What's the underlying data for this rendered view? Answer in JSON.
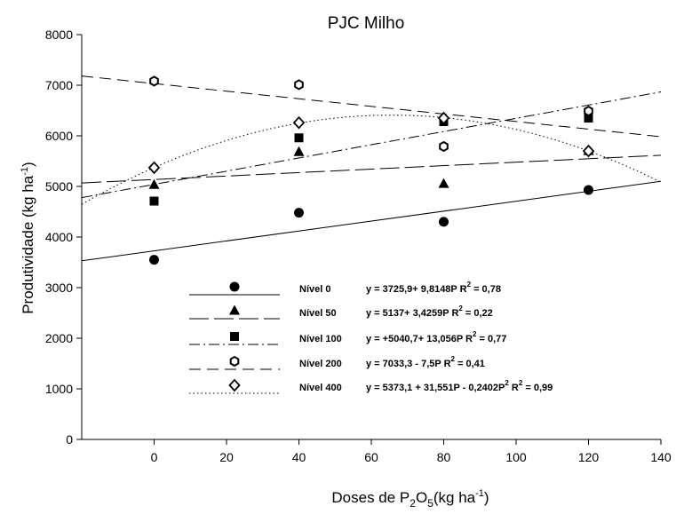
{
  "chart_data": {
    "type": "scatter",
    "title": "PJC Milho",
    "ylabel": "Produtividade (kg ha",
    "ylabel_sup": "-1",
    "ylabel_end": ")",
    "xlabel_pre": "Doses de P",
    "xlabel_sub1": "2",
    "xlabel_mid": "O",
    "xlabel_sub2": "5",
    "xlabel_post": "(kg ha",
    "xlabel_sup": "-1",
    "xlabel_end": ")",
    "xlim": [
      -20,
      140
    ],
    "ylim": [
      0,
      8000
    ],
    "xticks": [
      0,
      20,
      40,
      60,
      80,
      100,
      120,
      140
    ],
    "yticks": [
      0,
      1000,
      2000,
      3000,
      4000,
      5000,
      6000,
      7000,
      8000
    ],
    "grid": false,
    "legend_position": "bottom-center",
    "series": [
      {
        "name": "Nível 0",
        "marker": "filled-circle",
        "line_style": "solid",
        "equation": "y =  3725,9+ 9,8148P",
        "r2_label": "R",
        "r2_sup": "2",
        "r2_value": " = 0,78",
        "fit": {
          "kind": "linear",
          "a": 3725.9,
          "b": 9.8148
        },
        "x": [
          0,
          40,
          80,
          120
        ],
        "y": [
          3550,
          4480,
          4300,
          4930
        ]
      },
      {
        "name": "Nível 50",
        "marker": "filled-triangle",
        "line_style": "long-dash",
        "equation": "y =  5137+ 3,4259P",
        "r2_label": "R",
        "r2_sup": "2",
        "r2_value": " = 0,22",
        "fit": {
          "kind": "linear",
          "a": 5137,
          "b": 3.4259
        },
        "x": [
          0,
          40,
          80,
          120
        ],
        "y": [
          5030,
          5680,
          5050,
          5700
        ]
      },
      {
        "name": "Nível 100",
        "marker": "filled-square",
        "line_style": "dash-dot",
        "equation": "y =  +5040,7+ 13,056P",
        "r2_label": "R",
        "r2_sup": "2",
        "r2_value": " = 0,77",
        "fit": {
          "kind": "linear",
          "a": 5040.7,
          "b": 13.056
        },
        "x": [
          0,
          40,
          80,
          120
        ],
        "y": [
          4710,
          5960,
          6280,
          6350
        ]
      },
      {
        "name": "Nível 200",
        "marker": "open-hexagon",
        "line_style": "dash",
        "equation": "y =   7033,3 - 7,5P",
        "r2_label": "R",
        "r2_sup": "2",
        "r2_value": " = 0,41",
        "fit": {
          "kind": "linear",
          "a": 7033.3,
          "b": -7.5
        },
        "x": [
          0,
          40,
          80,
          120
        ],
        "y": [
          7080,
          7010,
          5790,
          6490
        ]
      },
      {
        "name": "Nível 400",
        "marker": "open-diamond",
        "line_style": "dotted",
        "equation": "y = 5373,1 + 31,551P - 0,2402P",
        "eq_sup": "2",
        "r2_label": "R",
        "r2_sup": "2",
        "r2_value": " = 0,99",
        "fit": {
          "kind": "quadratic",
          "a": 5373.1,
          "b": 31.551,
          "c": -0.2402
        },
        "x": [
          0,
          40,
          80,
          120
        ],
        "y": [
          5370,
          6260,
          6350,
          5700
        ]
      }
    ]
  }
}
